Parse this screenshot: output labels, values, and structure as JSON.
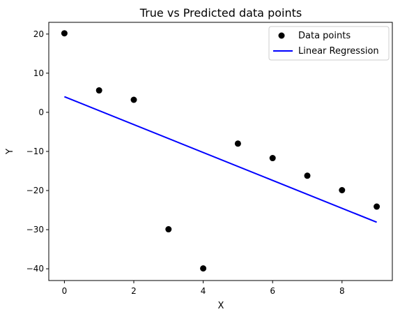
{
  "chart_data": {
    "type": "scatter",
    "title": "True vs Predicted data points",
    "xlabel": "X",
    "ylabel": "Y",
    "xlim": [
      -0.45,
      9.45
    ],
    "ylim": [
      -43,
      23
    ],
    "xticks": [
      0,
      2,
      4,
      6,
      8
    ],
    "yticks": [
      20,
      10,
      0,
      -10,
      -20,
      -30,
      -40
    ],
    "grid": false,
    "legend_position": "top-right",
    "series": [
      {
        "name": "Data points",
        "kind": "scatter",
        "color": "#000000",
        "x": [
          0,
          1,
          2,
          3,
          4,
          5,
          6,
          7,
          8,
          9
        ],
        "y": [
          20.2,
          5.6,
          3.2,
          -29.9,
          -39.9,
          -8.0,
          -11.7,
          -16.2,
          -19.9,
          -24.1
        ]
      },
      {
        "name": "Linear Regression",
        "kind": "line",
        "color": "#0000ff",
        "x": [
          0,
          9
        ],
        "y": [
          4.0,
          -28.1
        ]
      }
    ]
  }
}
